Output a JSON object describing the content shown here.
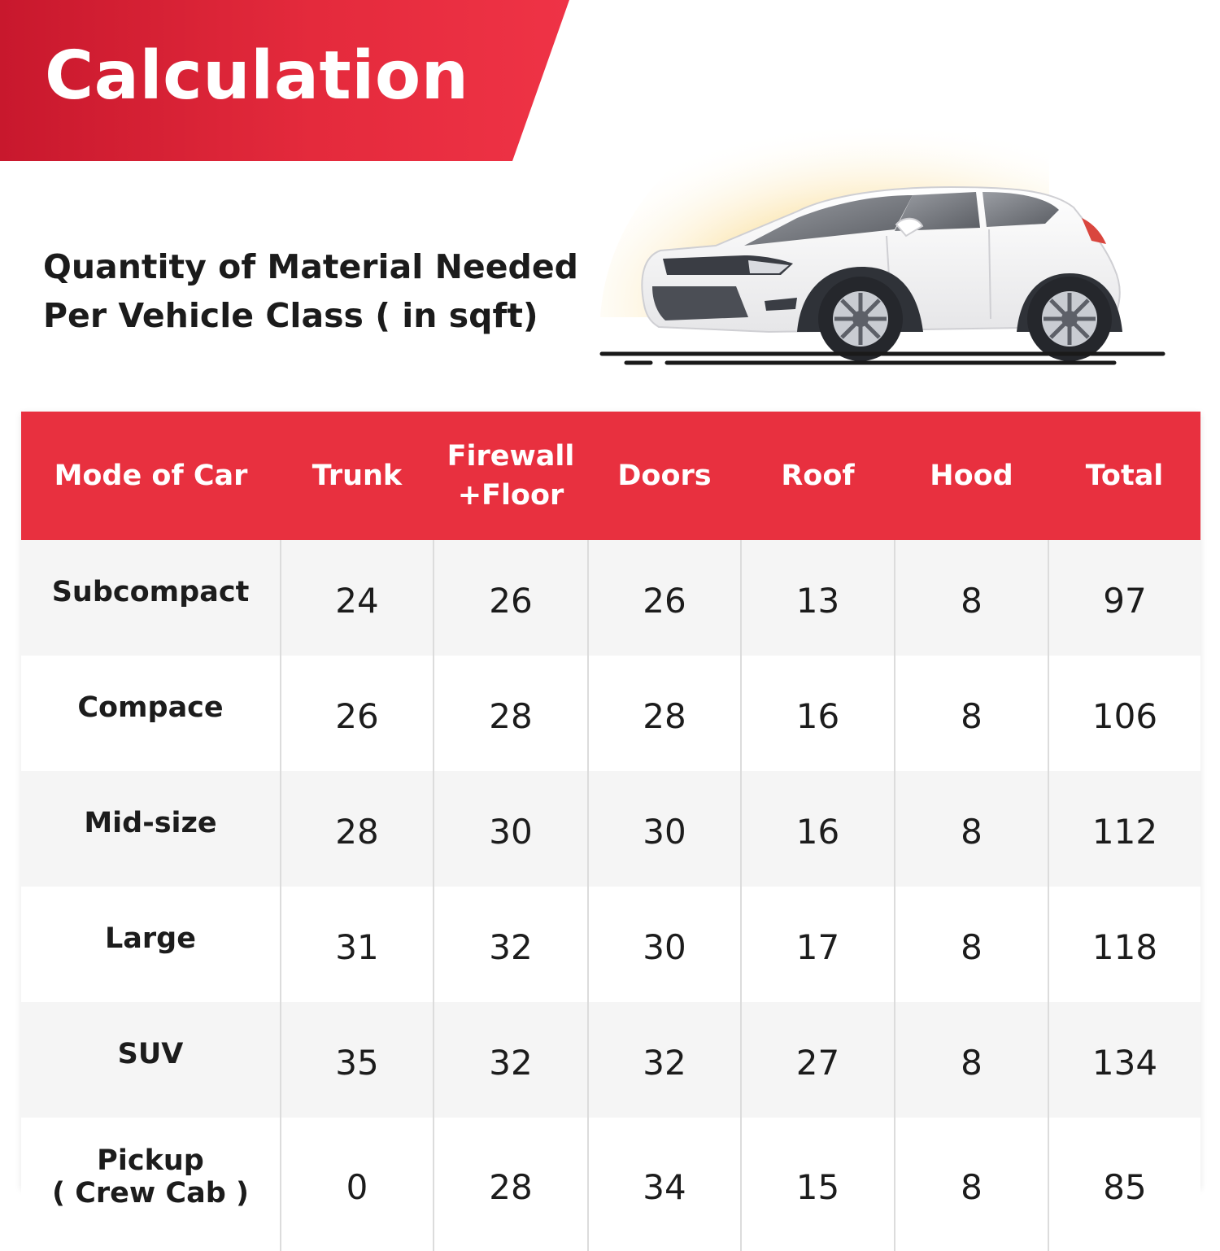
{
  "header": {
    "title": "Calculation",
    "banner_color": "#e42a3c"
  },
  "subtitle": {
    "line1": "Quantity of Material Needed",
    "line2": "Per Vehicle Class ( in sqft)"
  },
  "illustration": {
    "icon": "white-suv-car-icon",
    "glow_color": "#fbe3a8"
  },
  "table": {
    "header_color": "#e8303f",
    "columns": {
      "mode": "Mode of Car",
      "trunk": "Trunk",
      "firewall_line1": "Firewall",
      "firewall_line2": "+Floor",
      "doors": "Doors",
      "roof": "Roof",
      "hood": "Hood",
      "total": "Total"
    },
    "rows": [
      {
        "mode": "Subcompact",
        "trunk": "24",
        "firewall": "26",
        "doors": "26",
        "roof": "13",
        "hood": "8",
        "total": "97"
      },
      {
        "mode": "Compace",
        "trunk": "26",
        "firewall": "28",
        "doors": "28",
        "roof": "16",
        "hood": "8",
        "total": "106"
      },
      {
        "mode": "Mid-size",
        "trunk": "28",
        "firewall": "30",
        "doors": "30",
        "roof": "16",
        "hood": "8",
        "total": "112"
      },
      {
        "mode": "Large",
        "trunk": "31",
        "firewall": "32",
        "doors": "30",
        "roof": "17",
        "hood": "8",
        "total": "118"
      },
      {
        "mode": "SUV",
        "trunk": "35",
        "firewall": "32",
        "doors": "32",
        "roof": "27",
        "hood": "8",
        "total": "134"
      },
      {
        "mode_line1": "Pickup",
        "mode_line2": "( Crew Cab )",
        "trunk": "0",
        "firewall": "28",
        "doors": "34",
        "roof": "15",
        "hood": "8",
        "total": "85"
      }
    ]
  }
}
